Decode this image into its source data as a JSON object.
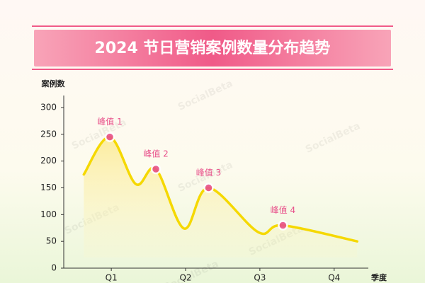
{
  "chart_data": {
    "type": "line",
    "title": "2024 节日营销案例数量分布趋势",
    "y_label": "案例数",
    "x_label": "季度",
    "watermark": "SocialBeta",
    "x": [
      0.63,
      0.98,
      1.33,
      1.6,
      1.98,
      2.31,
      2.98,
      3.31,
      4.31
    ],
    "xlim": [
      0.36,
      4.46
    ],
    "xticks": [
      {
        "value": 1,
        "label": "Q1"
      },
      {
        "value": 2,
        "label": "Q2"
      },
      {
        "value": 3,
        "label": "Q3"
      },
      {
        "value": 4,
        "label": "Q4"
      }
    ],
    "series": [
      {
        "name": "案例数",
        "color": "#f5d800",
        "values": [
          175,
          245,
          157,
          185,
          74,
          150,
          67,
          80,
          50
        ]
      }
    ],
    "ylim": [
      0,
      300
    ],
    "yticks": [
      0,
      50,
      100,
      150,
      200,
      250,
      300
    ],
    "annotations": [
      {
        "text": "峰值 1",
        "x": 0.98,
        "y": 245
      },
      {
        "text": "峰值 2",
        "x": 1.6,
        "y": 185
      },
      {
        "text": "峰值 3",
        "x": 2.31,
        "y": 150
      },
      {
        "text": "峰值 4",
        "x": 3.31,
        "y": 80
      }
    ],
    "annotation_color": "#e8508a"
  }
}
